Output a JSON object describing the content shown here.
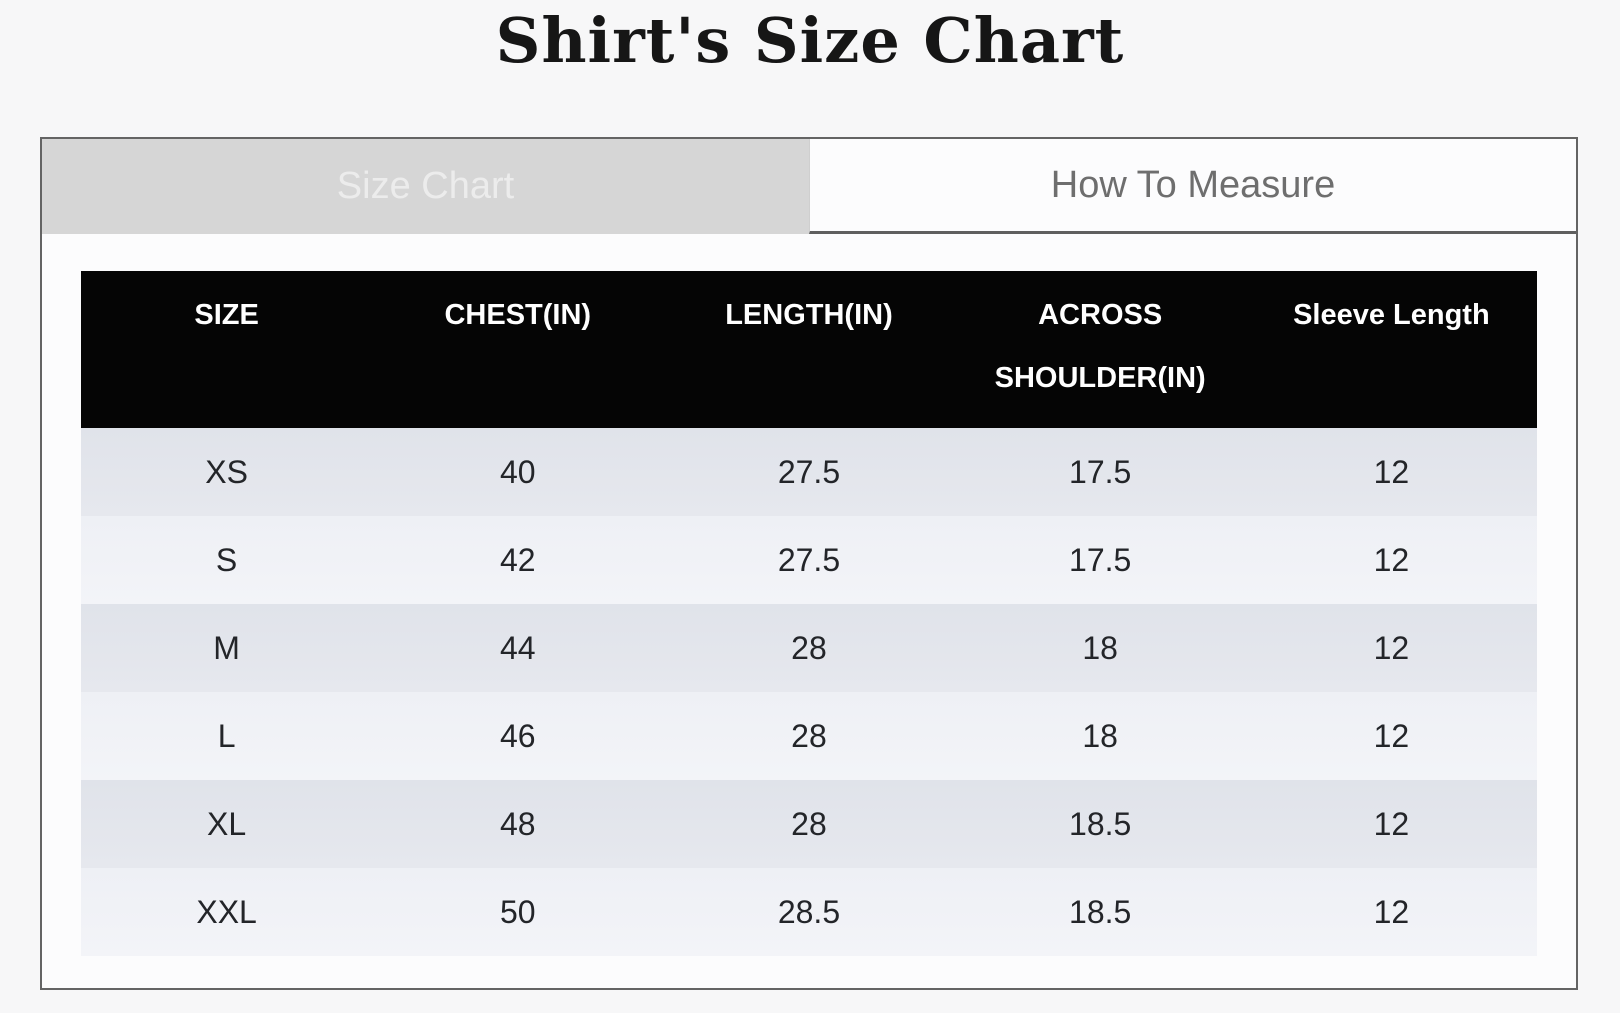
{
  "page": {
    "title": "Shirt's Size Chart"
  },
  "tabs": {
    "size_chart": {
      "label": "Size Chart",
      "active": true
    },
    "how_to_measure": {
      "label": "How To Measure",
      "active": false
    }
  },
  "colors": {
    "page_background": "#f7f7f8",
    "panel_border": "#646464",
    "active_tab_background": "#d6d6d6",
    "active_tab_text": "#ececec",
    "inactive_tab_text": "#6e6e6e",
    "table_header_background": "#050505",
    "table_header_text": "#ffffff",
    "row_odd_background": "#e2e4eb",
    "row_even_background": "#f0f2f6"
  },
  "chart_data": {
    "type": "table",
    "title": "Shirt's Size Chart",
    "columns": [
      "SIZE",
      "CHEST(IN)",
      "LENGTH(IN)",
      "ACROSS SHOULDER(IN)",
      "Sleeve Length"
    ],
    "rows": [
      [
        "XS",
        "40",
        "27.5",
        "17.5",
        "12"
      ],
      [
        "S",
        "42",
        "27.5",
        "17.5",
        "12"
      ],
      [
        "M",
        "44",
        "28",
        "18",
        "12"
      ],
      [
        "L",
        "46",
        "28",
        "18",
        "12"
      ],
      [
        "XL",
        "48",
        "28",
        "18.5",
        "12"
      ],
      [
        "XXL",
        "50",
        "28.5",
        "18.5",
        "12"
      ]
    ]
  },
  "table": {
    "columns": [
      "SIZE",
      "CHEST(IN)",
      "LENGTH(IN)",
      "ACROSS SHOULDER(IN)",
      "Sleeve Length"
    ],
    "rows": [
      [
        "XS",
        "40",
        "27.5",
        "17.5",
        "12"
      ],
      [
        "S",
        "42",
        "27.5",
        "17.5",
        "12"
      ],
      [
        "M",
        "44",
        "28",
        "18",
        "12"
      ],
      [
        "L",
        "46",
        "28",
        "18",
        "12"
      ],
      [
        "XL",
        "48",
        "28",
        "18.5",
        "12"
      ],
      [
        "XXL",
        "50",
        "28.5",
        "18.5",
        "12"
      ]
    ]
  }
}
